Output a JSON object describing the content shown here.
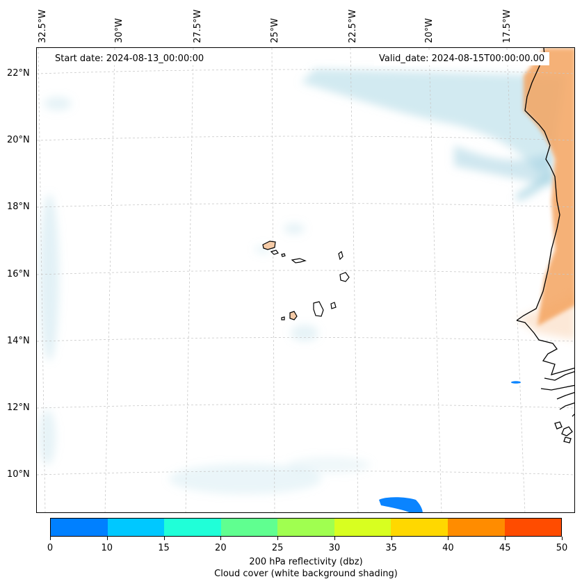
{
  "map": {
    "start_date": "Start date: 2024-08-13_00:00:00",
    "valid_date": "Valid_date: 2024-08-15T00:00:00.00",
    "lon_labels": [
      "32.5°W",
      "30°W",
      "27.5°W",
      "25°W",
      "22.5°W",
      "20°W",
      "17.5°W"
    ],
    "lat_labels": [
      "22°N",
      "20°N",
      "18°N",
      "16°N",
      "14°N",
      "12°N",
      "10°N"
    ],
    "colors": {
      "cloud": "#add8e6",
      "land_warm": "#f4a460",
      "island_fill": "#f5cba7",
      "coast": "#000000",
      "reflectivity_blob": "#0a84ff",
      "grid": "#c8c8c8"
    }
  },
  "colorbar": {
    "tick_labels": [
      "0",
      "10",
      "15",
      "20",
      "25",
      "30",
      "35",
      "40",
      "45",
      "50"
    ],
    "colors": [
      "#0080ff",
      "#00c8ff",
      "#20ffd8",
      "#60ff90",
      "#a0ff50",
      "#d8ff20",
      "#ffd800",
      "#ff8c00",
      "#ff4c00"
    ],
    "title": "200 hPa reflectivity (dbz)",
    "subtitle": "Cloud cover (white background shading)"
  }
}
